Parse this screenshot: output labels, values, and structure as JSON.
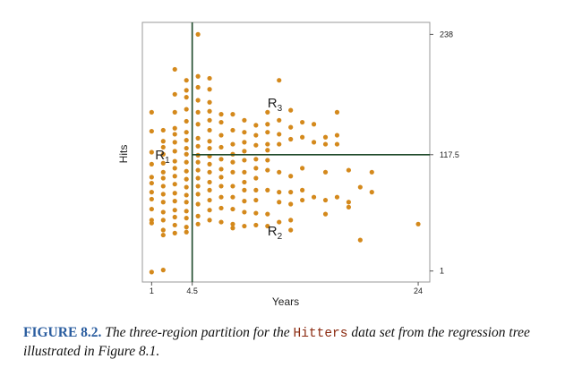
{
  "chart_data": {
    "type": "scatter",
    "title": "",
    "xlabel": "Years",
    "ylabel": "Hits",
    "xlim": [
      0.2,
      25.0
    ],
    "ylim": [
      -10,
      250
    ],
    "x_ticks": [
      {
        "value": 1,
        "label": "1"
      },
      {
        "value": 4.5,
        "label": "4.5"
      },
      {
        "value": 24,
        "label": "24"
      }
    ],
    "y_ticks": [
      {
        "value": 1,
        "label": "1"
      },
      {
        "value": 117.5,
        "label": "117.5"
      },
      {
        "value": 238,
        "label": "238"
      }
    ],
    "splits": {
      "vertical_x": 4.5,
      "horizontal_y": 117.5,
      "horizontal_from_x": 4.5
    },
    "regions": [
      {
        "base": "R",
        "sub": "1",
        "x": 1.3,
        "y": 118
      },
      {
        "base": "R",
        "sub": "2",
        "x": 11.0,
        "y": 42
      },
      {
        "base": "R",
        "sub": "3",
        "x": 11.0,
        "y": 170
      }
    ],
    "colors": {
      "points": "#d4891c",
      "split_lines": "#1f4a2a",
      "frame": "#999999"
    },
    "points": [
      [
        1,
        0
      ],
      [
        2,
        2
      ],
      [
        1,
        160
      ],
      [
        1,
        141
      ],
      [
        1,
        120
      ],
      [
        1,
        108
      ],
      [
        1,
        95
      ],
      [
        1,
        89
      ],
      [
        1,
        80
      ],
      [
        1,
        73
      ],
      [
        1,
        63
      ],
      [
        1,
        52
      ],
      [
        1,
        49
      ],
      [
        2,
        142
      ],
      [
        2,
        131
      ],
      [
        2,
        125
      ],
      [
        2,
        118
      ],
      [
        2,
        109
      ],
      [
        2,
        100
      ],
      [
        2,
        94
      ],
      [
        2,
        86
      ],
      [
        2,
        78
      ],
      [
        2,
        70
      ],
      [
        2,
        60
      ],
      [
        2,
        52
      ],
      [
        2,
        42
      ],
      [
        2,
        37
      ],
      [
        3,
        203
      ],
      [
        3,
        178
      ],
      [
        3,
        160
      ],
      [
        3,
        144
      ],
      [
        3,
        138
      ],
      [
        3,
        130
      ],
      [
        3,
        121
      ],
      [
        3,
        111
      ],
      [
        3,
        104
      ],
      [
        3,
        96
      ],
      [
        3,
        88
      ],
      [
        3,
        79
      ],
      [
        3,
        71
      ],
      [
        3,
        62
      ],
      [
        3,
        55
      ],
      [
        3,
        47
      ],
      [
        3,
        39
      ],
      [
        4,
        192
      ],
      [
        4,
        182
      ],
      [
        4,
        175
      ],
      [
        4,
        163
      ],
      [
        4,
        151
      ],
      [
        4,
        140
      ],
      [
        4,
        132
      ],
      [
        4,
        124
      ],
      [
        4,
        118
      ],
      [
        4,
        110
      ],
      [
        4,
        101
      ],
      [
        4,
        93
      ],
      [
        4,
        85
      ],
      [
        4,
        77
      ],
      [
        4,
        70
      ],
      [
        4,
        61
      ],
      [
        4,
        54
      ],
      [
        4,
        45
      ],
      [
        4,
        40
      ],
      [
        5,
        238
      ],
      [
        5,
        196
      ],
      [
        5,
        185
      ],
      [
        5,
        172
      ],
      [
        5,
        160
      ],
      [
        5,
        148
      ],
      [
        5,
        134
      ],
      [
        5,
        126
      ],
      [
        5,
        117
      ],
      [
        5,
        110
      ],
      [
        5,
        102
      ],
      [
        5,
        94
      ],
      [
        5,
        86
      ],
      [
        5,
        78
      ],
      [
        5,
        68
      ],
      [
        5,
        56
      ],
      [
        5,
        48
      ],
      [
        6,
        194
      ],
      [
        6,
        183
      ],
      [
        6,
        170
      ],
      [
        6,
        161
      ],
      [
        6,
        152
      ],
      [
        6,
        142
      ],
      [
        6,
        131
      ],
      [
        6,
        124
      ],
      [
        6,
        116
      ],
      [
        6,
        108
      ],
      [
        6,
        100
      ],
      [
        6,
        90
      ],
      [
        6,
        82
      ],
      [
        6,
        72
      ],
      [
        6,
        62
      ],
      [
        6,
        52
      ],
      [
        7,
        158
      ],
      [
        7,
        150
      ],
      [
        7,
        137
      ],
      [
        7,
        125
      ],
      [
        7,
        113
      ],
      [
        7,
        103
      ],
      [
        7,
        95
      ],
      [
        7,
        86
      ],
      [
        7,
        75
      ],
      [
        7,
        64
      ],
      [
        7,
        50
      ],
      [
        8,
        158
      ],
      [
        8,
        142
      ],
      [
        8,
        128
      ],
      [
        8,
        118
      ],
      [
        8,
        110
      ],
      [
        8,
        100
      ],
      [
        8,
        86
      ],
      [
        8,
        75
      ],
      [
        8,
        63
      ],
      [
        8,
        48
      ],
      [
        8,
        44
      ],
      [
        9,
        152
      ],
      [
        9,
        140
      ],
      [
        9,
        130
      ],
      [
        9,
        121
      ],
      [
        9,
        112
      ],
      [
        9,
        100
      ],
      [
        9,
        90
      ],
      [
        9,
        82
      ],
      [
        9,
        71
      ],
      [
        9,
        60
      ],
      [
        9,
        46
      ],
      [
        10,
        147
      ],
      [
        10,
        137
      ],
      [
        10,
        127
      ],
      [
        10,
        113
      ],
      [
        10,
        104
      ],
      [
        10,
        94
      ],
      [
        10,
        82
      ],
      [
        10,
        72
      ],
      [
        10,
        59
      ],
      [
        10,
        47
      ],
      [
        11,
        160
      ],
      [
        11,
        148
      ],
      [
        11,
        140
      ],
      [
        11,
        128
      ],
      [
        11,
        122
      ],
      [
        11,
        112
      ],
      [
        11,
        102
      ],
      [
        11,
        82
      ],
      [
        11,
        58
      ],
      [
        11,
        46
      ],
      [
        12,
        192
      ],
      [
        12,
        152
      ],
      [
        12,
        138
      ],
      [
        12,
        128
      ],
      [
        12,
        100
      ],
      [
        12,
        80
      ],
      [
        12,
        70
      ],
      [
        12,
        50
      ],
      [
        13,
        162
      ],
      [
        13,
        145
      ],
      [
        13,
        133
      ],
      [
        13,
        96
      ],
      [
        13,
        80
      ],
      [
        13,
        68
      ],
      [
        13,
        52
      ],
      [
        13,
        42
      ],
      [
        14,
        150
      ],
      [
        14,
        135
      ],
      [
        14,
        104
      ],
      [
        14,
        82
      ],
      [
        14,
        72
      ],
      [
        15,
        148
      ],
      [
        15,
        130
      ],
      [
        15,
        75
      ],
      [
        16,
        135
      ],
      [
        16,
        128
      ],
      [
        16,
        100
      ],
      [
        16,
        72
      ],
      [
        16,
        58
      ],
      [
        17,
        137
      ],
      [
        17,
        128
      ],
      [
        17,
        160
      ],
      [
        17,
        75
      ],
      [
        18,
        102
      ],
      [
        18,
        70
      ],
      [
        18,
        65
      ],
      [
        19,
        85
      ],
      [
        19,
        32
      ],
      [
        20,
        100
      ],
      [
        20,
        80
      ],
      [
        24,
        48
      ]
    ]
  },
  "caption": {
    "figure_label": "FIGURE 8.2.",
    "text_before": "The three-region partition for the",
    "dataset": "Hitters",
    "text_after": "data set from the regression tree illustrated in Figure 8.1."
  }
}
